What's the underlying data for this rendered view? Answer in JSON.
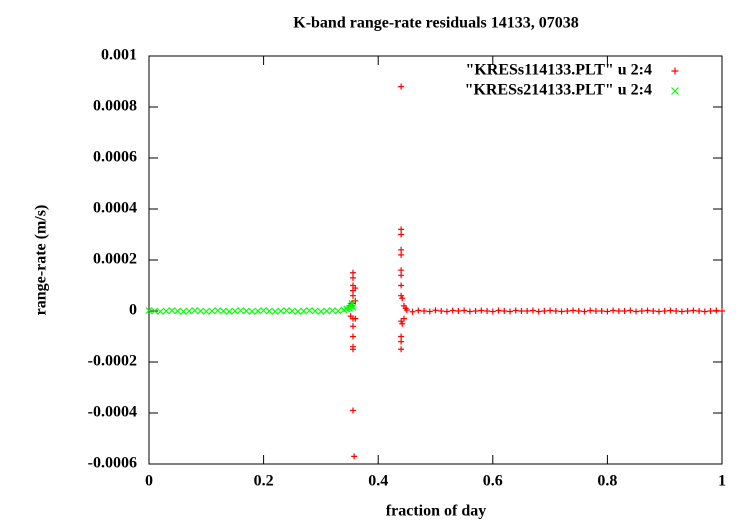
{
  "chart_data": {
    "type": "scatter",
    "title": "K-band range-rate residuals 14133, 07038",
    "xlabel": "fraction of day",
    "ylabel": "range-rate (m/s)",
    "xlim": [
      0,
      1
    ],
    "ylim": [
      -0.0006,
      0.001
    ],
    "xticks": [
      0,
      0.2,
      0.4,
      0.6,
      0.8,
      1
    ],
    "yticks": [
      -0.0006,
      -0.0004,
      -0.0002,
      0,
      0.0002,
      0.0004,
      0.0006,
      0.0008,
      0.001
    ],
    "legend": "upper right",
    "series": [
      {
        "name": "\"KRESs114133.PLT\" u 2:4",
        "color": "#ff0000",
        "marker": "+",
        "x": [
          0.35,
          0.352,
          0.354,
          0.356,
          0.356,
          0.356,
          0.356,
          0.356,
          0.356,
          0.356,
          0.356,
          0.356,
          0.356,
          0.356,
          0.356,
          0.358,
          0.36,
          0.36,
          0.36,
          0.44,
          0.44,
          0.44,
          0.44,
          0.44,
          0.44,
          0.44,
          0.44,
          0.44,
          0.44,
          0.44,
          0.44,
          0.44,
          0.442,
          0.442,
          0.445,
          0.445,
          0.448,
          0.45,
          0.46,
          0.47,
          0.48,
          0.49,
          0.5,
          0.51,
          0.52,
          0.53,
          0.54,
          0.55,
          0.56,
          0.57,
          0.58,
          0.59,
          0.6,
          0.61,
          0.62,
          0.63,
          0.64,
          0.65,
          0.66,
          0.67,
          0.68,
          0.69,
          0.7,
          0.71,
          0.72,
          0.73,
          0.74,
          0.75,
          0.76,
          0.77,
          0.78,
          0.79,
          0.8,
          0.81,
          0.82,
          0.83,
          0.84,
          0.85,
          0.86,
          0.87,
          0.88,
          0.89,
          0.9,
          0.91,
          0.92,
          0.93,
          0.94,
          0.95,
          0.96,
          0.97,
          0.98,
          0.99,
          1
        ],
        "values": [
          2e-05,
          -2e-05,
          3e-05,
          0.00015,
          0.00013,
          0.0001,
          8e-05,
          6e-05,
          3e-05,
          -3e-05,
          -6e-05,
          -0.0001,
          -0.00014,
          -0.00015,
          -0.00039,
          -0.00057,
          9e-05,
          4e-05,
          -3e-05,
          0.00088,
          0.00032,
          0.0003,
          0.00024,
          0.00022,
          0.00016,
          0.00014,
          0.0001,
          6e-05,
          -4e-05,
          -0.0001,
          -0.00012,
          -0.00015,
          5e-05,
          -5e-05,
          2e-05,
          -3e-05,
          1e-05,
          4e-06,
          -3e-06,
          2e-06,
          0,
          -2e-06,
          3e-06,
          0,
          -2e-06,
          2e-06,
          0,
          2e-06,
          -2e-06,
          0,
          2e-06,
          0,
          -2e-06,
          2e-06,
          0,
          -2e-06,
          2e-06,
          0,
          0,
          2e-06,
          -2e-06,
          0,
          2e-06,
          0,
          -2e-06,
          0,
          2e-06,
          0,
          -2e-06,
          2e-06,
          0,
          0,
          -2e-06,
          2e-06,
          0,
          0,
          2e-06,
          -2e-06,
          0,
          2e-06,
          0,
          -2e-06,
          0,
          2e-06,
          0,
          -2e-06,
          0,
          2e-06,
          0,
          -2e-06,
          0,
          2e-06,
          0
        ]
      },
      {
        "name": "\"KRESs214133.PLT\" u 2:4",
        "color": "#00ff00",
        "marker": "x",
        "x": [
          0,
          0.01,
          0.02,
          0.03,
          0.04,
          0.05,
          0.06,
          0.07,
          0.08,
          0.09,
          0.1,
          0.11,
          0.12,
          0.13,
          0.14,
          0.15,
          0.16,
          0.17,
          0.18,
          0.19,
          0.2,
          0.21,
          0.22,
          0.23,
          0.24,
          0.25,
          0.26,
          0.27,
          0.28,
          0.29,
          0.3,
          0.31,
          0.32,
          0.33,
          0.34,
          0.345,
          0.35,
          0.352,
          0.354,
          0.356
        ],
        "values": [
          2e-06,
          0,
          -2e-06,
          0,
          2e-06,
          0,
          -2e-06,
          0,
          2e-06,
          0,
          -2e-06,
          0,
          2e-06,
          0,
          -2e-06,
          0,
          2e-06,
          0,
          -2e-06,
          0,
          2e-06,
          0,
          -2e-06,
          0,
          2e-06,
          0,
          -2e-06,
          0,
          2e-06,
          0,
          -2e-06,
          0,
          2e-06,
          0,
          4e-06,
          8e-06,
          1e-05,
          2e-05,
          3e-05,
          1.5e-05
        ]
      }
    ]
  }
}
